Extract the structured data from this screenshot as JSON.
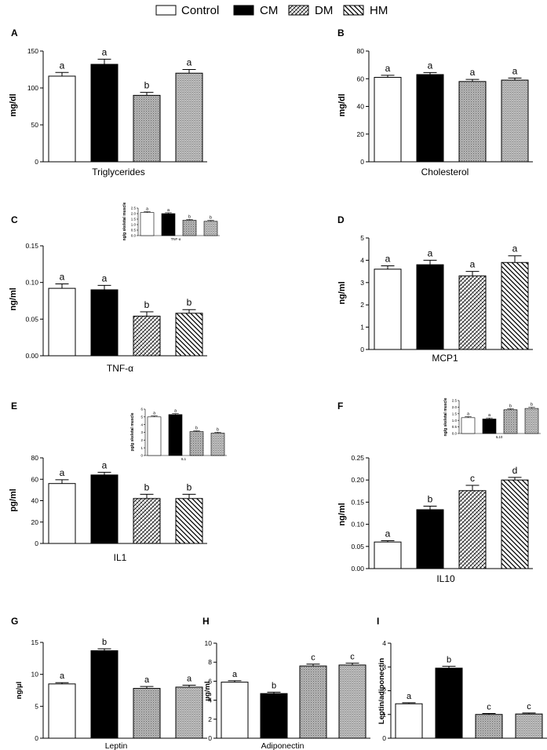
{
  "legend": [
    {
      "label": "Control",
      "pattern": "white"
    },
    {
      "label": "CM",
      "pattern": "black"
    },
    {
      "label": "DM",
      "pattern": "dm"
    },
    {
      "label": "HM",
      "pattern": "hm"
    }
  ],
  "colors": {
    "bar_edge": "#000000",
    "cm_fill": "#000000",
    "dotted_fill": "#b5b5b5"
  },
  "chart_data": [
    {
      "panel": "A",
      "type": "bar",
      "title": "",
      "xlabel": "Triglycerides",
      "ylabel": "mg/dl",
      "ylim": [
        0,
        150
      ],
      "yticks": [
        0,
        50,
        100,
        150
      ],
      "style": "hatch",
      "categories": [
        "Control",
        "CM",
        "DM",
        "HM"
      ],
      "values": [
        116,
        132,
        90,
        120
      ],
      "errors": [
        5,
        7,
        4,
        5
      ],
      "letters": [
        "a",
        "a",
        "b",
        "a"
      ],
      "patterns": [
        "white",
        "black",
        "dm-dot",
        "hm-dot"
      ]
    },
    {
      "panel": "B",
      "type": "bar",
      "title": "",
      "xlabel": "Cholesterol",
      "ylabel": "mg/dl",
      "ylim": [
        0,
        80
      ],
      "yticks": [
        0,
        20,
        40,
        60,
        80
      ],
      "style": "hatch",
      "categories": [
        "Control",
        "CM",
        "DM",
        "HM"
      ],
      "values": [
        61,
        63,
        58,
        59
      ],
      "errors": [
        1.5,
        1.5,
        1.5,
        1.5
      ],
      "letters": [
        "a",
        "a",
        "a",
        "a"
      ],
      "patterns": [
        "white",
        "black",
        "dm-dot",
        "hm-dot"
      ]
    },
    {
      "panel": "C",
      "type": "bar",
      "title": "",
      "xlabel": "TNF-α",
      "ylabel": "ng/ml",
      "ylim": [
        0,
        0.15
      ],
      "yticks": [
        0.0,
        0.05,
        0.1,
        0.15
      ],
      "tick_decimals": 2,
      "style": "hatch",
      "categories": [
        "Control",
        "CM",
        "DM",
        "HM"
      ],
      "values": [
        0.092,
        0.09,
        0.054,
        0.058
      ],
      "errors": [
        0.006,
        0.006,
        0.006,
        0.005
      ],
      "letters": [
        "a",
        "a",
        "b",
        "b"
      ],
      "patterns": [
        "white",
        "black",
        "dm",
        "hm"
      ],
      "inset": {
        "xlabel": "TNF-α",
        "ylabel": "ng/g skeletal muscle",
        "ylim": [
          0,
          2.5
        ],
        "yticks": [
          0,
          0.5,
          1.0,
          1.5,
          2.0,
          2.5
        ],
        "tick_decimals": 1,
        "values": [
          2.1,
          2.0,
          1.4,
          1.3
        ],
        "errors": [
          0.08,
          0.08,
          0.08,
          0.08
        ],
        "letters": [
          "a",
          "a",
          "b",
          "b"
        ],
        "patterns": [
          "white",
          "black",
          "dm-dot",
          "hm-dot"
        ]
      }
    },
    {
      "panel": "D",
      "type": "bar",
      "title": "",
      "xlabel": "MCP1",
      "ylabel": "ng/ml",
      "ylim": [
        0,
        5
      ],
      "yticks": [
        0,
        1,
        2,
        3,
        4,
        5
      ],
      "style": "hatch",
      "categories": [
        "Control",
        "CM",
        "DM",
        "HM"
      ],
      "values": [
        3.6,
        3.8,
        3.3,
        3.9
      ],
      "errors": [
        0.15,
        0.2,
        0.2,
        0.3
      ],
      "letters": [
        "a",
        "a",
        "a",
        "a"
      ],
      "patterns": [
        "white",
        "black",
        "dm",
        "hm"
      ]
    },
    {
      "panel": "E",
      "type": "bar",
      "title": "",
      "xlabel": "IL1",
      "ylabel": "pg/ml",
      "ylim": [
        0,
        80
      ],
      "yticks": [
        0,
        20,
        40,
        60,
        80
      ],
      "style": "hatch",
      "categories": [
        "Control",
        "CM",
        "DM",
        "HM"
      ],
      "values": [
        56,
        64,
        42,
        42
      ],
      "errors": [
        3.5,
        2.5,
        4,
        4
      ],
      "letters": [
        "a",
        "a",
        "b",
        "b"
      ],
      "patterns": [
        "white",
        "black",
        "dm",
        "hm"
      ],
      "inset": {
        "xlabel": "IL1",
        "ylabel": "pg/g skeletal muscle",
        "ylim": [
          0,
          6
        ],
        "yticks": [
          0,
          1,
          2,
          3,
          4,
          5,
          6
        ],
        "tick_decimals": 0,
        "values": [
          5.0,
          5.3,
          3.1,
          2.9
        ],
        "errors": [
          0.12,
          0.12,
          0.1,
          0.12
        ],
        "letters": [
          "a",
          "a",
          "b",
          "b"
        ],
        "patterns": [
          "white",
          "black",
          "dm-dot",
          "hm-dot"
        ]
      }
    },
    {
      "panel": "F",
      "type": "bar",
      "title": "",
      "xlabel": "IL10",
      "ylabel": "ng/ml",
      "ylim": [
        0,
        0.25
      ],
      "yticks": [
        0.0,
        0.05,
        0.1,
        0.15,
        0.2,
        0.25
      ],
      "tick_decimals": 2,
      "style": "hatch",
      "categories": [
        "Control",
        "CM",
        "DM",
        "HM"
      ],
      "values": [
        0.06,
        0.133,
        0.176,
        0.2
      ],
      "errors": [
        0.003,
        0.008,
        0.012,
        0.006
      ],
      "letters": [
        "a",
        "b",
        "c",
        "d"
      ],
      "patterns": [
        "white",
        "black",
        "dm",
        "hm"
      ],
      "inset": {
        "xlabel": "IL10",
        "ylabel": "ng/g skeletal muscle",
        "ylim": [
          0,
          2.5
        ],
        "yticks": [
          0,
          0.5,
          1.0,
          1.5,
          2.0,
          2.5
        ],
        "tick_decimals": 1,
        "values": [
          1.2,
          1.1,
          1.8,
          1.9
        ],
        "errors": [
          0.08,
          0.08,
          0.08,
          0.08
        ],
        "letters": [
          "a",
          "a",
          "b",
          "b"
        ],
        "patterns": [
          "white",
          "black",
          "dm-dot",
          "hm-dot"
        ]
      }
    },
    {
      "panel": "G",
      "type": "bar",
      "title": "",
      "xlabel": "Leptin",
      "ylabel": "ng/µl",
      "ylim": [
        0,
        15
      ],
      "yticks": [
        0,
        5,
        10,
        15
      ],
      "style": "small",
      "categories": [
        "Control",
        "CM",
        "DM",
        "HM"
      ],
      "values": [
        8.5,
        13.7,
        7.8,
        8.0
      ],
      "errors": [
        0.2,
        0.3,
        0.3,
        0.3
      ],
      "letters": [
        "a",
        "b",
        "a",
        "a"
      ],
      "patterns": [
        "white",
        "black",
        "dm-dot",
        "hm-dot"
      ]
    },
    {
      "panel": "H",
      "type": "bar",
      "title": "",
      "xlabel": "Adiponectin",
      "ylabel": "µg/ml",
      "ylim": [
        0,
        10
      ],
      "yticks": [
        0,
        2,
        4,
        6,
        8,
        10
      ],
      "style": "small",
      "categories": [
        "Control",
        "CM",
        "DM",
        "HM"
      ],
      "values": [
        5.9,
        4.7,
        7.6,
        7.7
      ],
      "errors": [
        0.15,
        0.15,
        0.2,
        0.2
      ],
      "letters": [
        "a",
        "b",
        "c",
        "c"
      ],
      "patterns": [
        "white",
        "black",
        "dm-dot",
        "hm-dot"
      ]
    },
    {
      "panel": "I",
      "type": "bar",
      "title": "",
      "xlabel": "Leptin/adiponectin",
      "xlabel_axis": "",
      "ylabel": "Leptin/adiponectin",
      "ylim": [
        0,
        4
      ],
      "yticks": [
        0,
        1,
        2,
        3,
        4
      ],
      "style": "small",
      "categories": [
        "Control",
        "CM",
        "DM",
        "HM"
      ],
      "values": [
        1.45,
        2.95,
        1.0,
        1.02
      ],
      "errors": [
        0.04,
        0.08,
        0.04,
        0.04
      ],
      "letters": [
        "a",
        "b",
        "c",
        "c"
      ],
      "patterns": [
        "white",
        "black",
        "dm-dot",
        "hm-dot"
      ]
    }
  ]
}
